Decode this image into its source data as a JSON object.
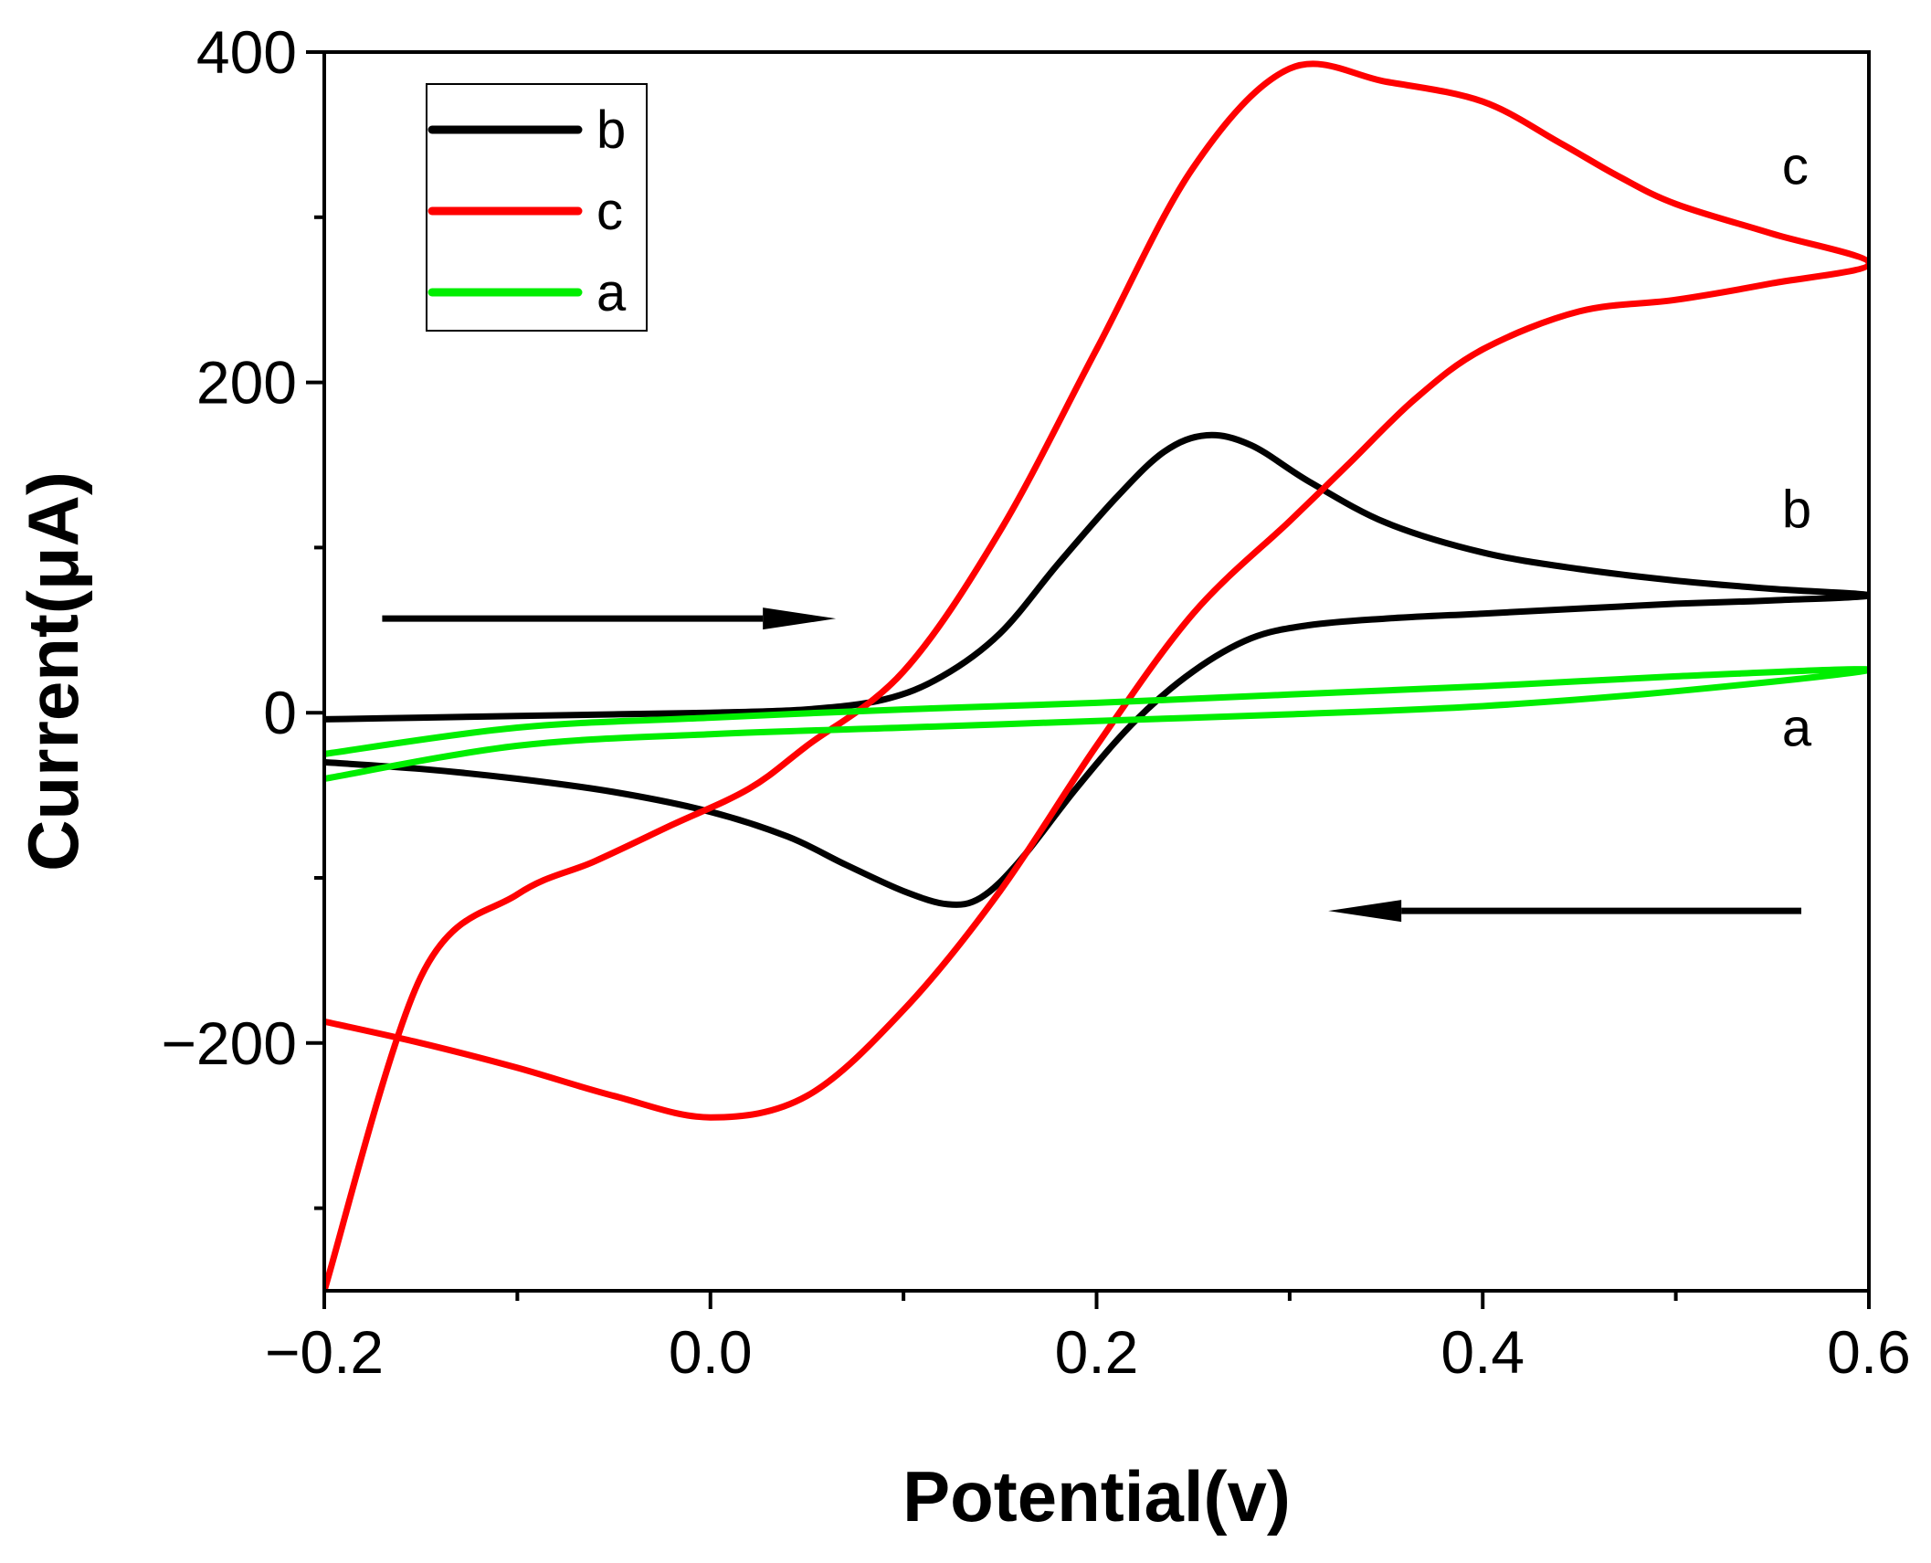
{
  "chart_data": {
    "type": "line",
    "title": "",
    "xlabel": "Potential(v)",
    "ylabel": "Current(μA)",
    "xlim": [
      -0.2,
      0.6
    ],
    "ylim": [
      -350,
      400
    ],
    "x_ticks": [
      -0.2,
      0.0,
      0.2,
      0.4,
      0.6
    ],
    "x_tick_labels": [
      "−0.2",
      "0.0",
      "0.2",
      "0.4",
      "0.6"
    ],
    "x_minor_ticks": [
      -0.1,
      0.1,
      0.3,
      0.5
    ],
    "y_ticks": [
      -200,
      0,
      200,
      400
    ],
    "y_tick_labels": [
      "−200",
      "0",
      "200",
      "400"
    ],
    "y_minor_ticks": [
      -300,
      -100,
      100,
      300
    ],
    "grid": false,
    "legend_position": "top-left",
    "legend": [
      "b",
      "c",
      "a"
    ],
    "series": [
      {
        "name": "b",
        "color": "#000000",
        "x": [
          -0.2,
          -0.15,
          -0.1,
          -0.05,
          0.0,
          0.05,
          0.09,
          0.12,
          0.15,
          0.18,
          0.21,
          0.235,
          0.257,
          0.28,
          0.31,
          0.35,
          0.4,
          0.45,
          0.5,
          0.55,
          0.6,
          0.55,
          0.5,
          0.45,
          0.4,
          0.35,
          0.31,
          0.28,
          0.25,
          0.22,
          0.19,
          0.16,
          0.14,
          0.123,
          0.1,
          0.07,
          0.04,
          0.0,
          -0.05,
          -0.1,
          -0.15,
          -0.2
        ],
        "y": [
          -4,
          -3,
          -2,
          -1,
          0,
          2,
          8,
          22,
          48,
          90,
          130,
          158,
          168,
          162,
          140,
          115,
          97,
          87,
          80,
          75,
          71,
          68,
          66,
          63,
          60,
          57,
          53,
          45,
          25,
          -5,
          -45,
          -90,
          -112,
          -116,
          -108,
          -92,
          -75,
          -60,
          -48,
          -40,
          -34,
          -30
        ]
      },
      {
        "name": "c",
        "color": "#ff0000",
        "x": [
          -0.2,
          -0.15,
          -0.1,
          -0.05,
          0.0,
          0.05,
          0.1,
          0.15,
          0.2,
          0.25,
          0.3,
          0.33,
          0.365,
          0.4,
          0.45,
          0.5,
          0.55,
          0.6,
          0.55,
          0.5,
          0.47,
          0.44,
          0.4,
          0.35,
          0.3,
          0.25,
          0.2,
          0.15,
          0.1,
          0.05,
          0.02,
          -0.02,
          -0.06,
          -0.1,
          -0.15,
          -0.2
        ],
        "y": [
          -187,
          -200,
          -215,
          -232,
          -245,
          -232,
          -180,
          -108,
          -20,
          60,
          116,
          150,
          190,
          220,
          243,
          250,
          260,
          272,
          290,
          308,
          325,
          345,
          370,
          382,
          390,
          330,
          220,
          110,
          25,
          -20,
          -46,
          -68,
          -90,
          -110,
          -160,
          -350
        ]
      },
      {
        "name": "a",
        "color": "#00ee00",
        "x": [
          -0.2,
          -0.1,
          0.0,
          0.1,
          0.2,
          0.3,
          0.4,
          0.5,
          0.6,
          0.5,
          0.4,
          0.3,
          0.2,
          0.1,
          0.0,
          -0.1,
          -0.2
        ],
        "y": [
          -40,
          -20,
          -13,
          -9,
          -5,
          -1,
          4,
          13,
          26,
          22,
          16,
          11,
          6,
          2,
          -3,
          -9,
          -25
        ]
      }
    ],
    "annotations": [
      {
        "text": "c",
        "x": 0.555,
        "y": 320
      },
      {
        "text": "b",
        "x": 0.555,
        "y": 112
      },
      {
        "text": "a",
        "x": 0.555,
        "y": -20
      },
      {
        "text": "forward-scan-arrow",
        "x1": -0.17,
        "x2": 0.065,
        "y": 57
      },
      {
        "text": "reverse-scan-arrow",
        "x1": 0.565,
        "x2": 0.32,
        "y": -120
      }
    ]
  }
}
